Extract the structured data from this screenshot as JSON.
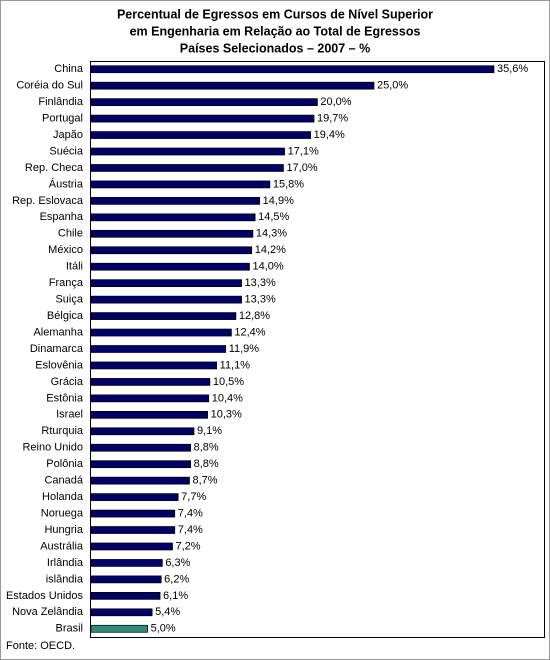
{
  "chart_data": {
    "type": "bar",
    "orientation": "horizontal",
    "title": [
      "Percentual de Egressos em Cursos de Nível Superior",
      "em Engenharia em Relação ao Total de Egressos",
      "Países Selecionados – 2007 – %"
    ],
    "categories": [
      "China",
      "Coréia do Sul",
      "Finlândia",
      "Portugal",
      "Japão",
      "Suécia",
      "Rep. Checa",
      "Áustria",
      "Rep. Eslovaca",
      "Espanha",
      "Chile",
      "México",
      "Itáli",
      "França",
      "Suiça",
      "Bélgica",
      "Alemanha",
      "Dinamarca",
      "Eslovênia",
      "Grácia",
      "Estônia",
      "Israel",
      "Rturquia",
      "Reino Unido",
      "Polônia",
      "Canadá",
      "Holanda",
      "Noruega",
      "Hungria",
      "Austrália",
      "Irlândia",
      "islândia",
      "Estados Unidos",
      "Nova Zelândia",
      "Brasil"
    ],
    "values": [
      35.6,
      25.0,
      20.0,
      19.7,
      19.4,
      17.1,
      17.0,
      15.8,
      14.9,
      14.5,
      14.3,
      14.2,
      14.0,
      13.3,
      13.3,
      12.8,
      12.4,
      11.9,
      11.1,
      10.5,
      10.4,
      10.3,
      9.1,
      8.8,
      8.8,
      8.7,
      7.7,
      7.4,
      7.4,
      7.2,
      6.3,
      6.2,
      6.1,
      5.4,
      5.0
    ],
    "value_labels": [
      "35,6%",
      "25,0%",
      "20,0%",
      "19,7%",
      "19,4%",
      "17,1%",
      "17,0%",
      "15,8%",
      "14,9%",
      "14,5%",
      "14,3%",
      "14,2%",
      "14,0%",
      "13,3%",
      "13,3%",
      "12,8%",
      "12,4%",
      "11,9%",
      "11,1%",
      "10,5%",
      "10,4%",
      "10,3%",
      "9,1%",
      "8,8%",
      "8,8%",
      "8,7%",
      "7,7%",
      "7,4%",
      "7,4%",
      "7,2%",
      "6,3%",
      "6,2%",
      "6,1%",
      "5,4%",
      "5,0%"
    ],
    "colors": [
      "#000066",
      "#000066",
      "#000066",
      "#000066",
      "#000066",
      "#000066",
      "#000066",
      "#000066",
      "#000066",
      "#000066",
      "#000066",
      "#000066",
      "#000066",
      "#000066",
      "#000066",
      "#000066",
      "#000066",
      "#000066",
      "#000066",
      "#000066",
      "#000066",
      "#000066",
      "#000066",
      "#000066",
      "#000066",
      "#000066",
      "#000066",
      "#000066",
      "#000066",
      "#000066",
      "#000066",
      "#000066",
      "#000066",
      "#000066",
      "#2e8b7a"
    ],
    "source": "Fonte: OECD."
  }
}
